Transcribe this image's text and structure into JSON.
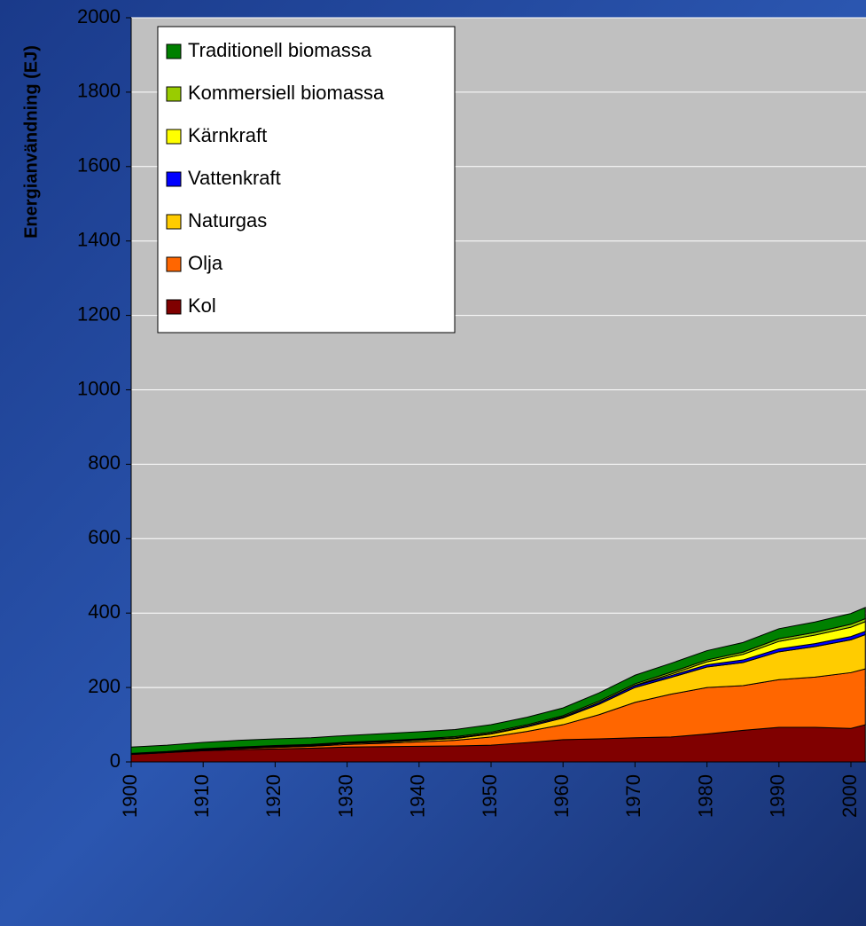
{
  "chart_data": {
    "type": "stacked_area",
    "ylabel": "Energianvändning (EJ)",
    "x": [
      1900,
      1905,
      1910,
      1915,
      1920,
      1925,
      1930,
      1935,
      1940,
      1945,
      1950,
      1955,
      1960,
      1965,
      1970,
      1975,
      1980,
      1985,
      1990,
      1995,
      2000,
      2002
    ],
    "series": [
      {
        "name": "Kol",
        "color": "#800000",
        "values": [
          20,
          25,
          30,
          33,
          35,
          37,
          40,
          41,
          42,
          43,
          45,
          52,
          60,
          62,
          65,
          67,
          75,
          85,
          93,
          93,
          90,
          100
        ]
      },
      {
        "name": "Olja",
        "color": "#ff6600",
        "values": [
          1,
          1,
          2,
          3,
          4,
          5,
          7,
          9,
          12,
          15,
          22,
          30,
          40,
          65,
          95,
          115,
          125,
          120,
          128,
          135,
          150,
          150
        ]
      },
      {
        "name": "Naturgas",
        "color": "#ffcc00",
        "values": [
          0,
          0,
          1,
          1,
          2,
          2,
          3,
          3,
          4,
          5,
          8,
          12,
          18,
          28,
          40,
          45,
          55,
          62,
          75,
          82,
          88,
          92
        ]
      },
      {
        "name": "Vattenkraft",
        "color": "#0000ff",
        "values": [
          0,
          0,
          0.5,
          1,
          1,
          1,
          1,
          2,
          2,
          2,
          2,
          3,
          3,
          4,
          5,
          5,
          6,
          7,
          8,
          8,
          9,
          9
        ]
      },
      {
        "name": "Kärnkraft",
        "color": "#ffff00",
        "values": [
          0,
          0,
          0,
          0,
          0,
          0,
          0,
          0,
          0,
          0,
          0,
          0,
          0.2,
          0.5,
          1,
          4,
          8,
          15,
          20,
          23,
          25,
          26
        ]
      },
      {
        "name": "Kommersiell biomassa",
        "color": "#99cc00",
        "values": [
          2,
          2,
          2,
          2,
          2,
          2,
          2,
          2,
          2,
          3,
          3,
          3,
          3,
          4,
          4,
          5,
          5,
          6,
          7,
          7,
          8,
          8
        ]
      },
      {
        "name": "Traditionell biomassa",
        "color": "#008000",
        "values": [
          17,
          17,
          17,
          18,
          18,
          18,
          18,
          19,
          19,
          19,
          20,
          20,
          21,
          22,
          23,
          24,
          25,
          26,
          27,
          28,
          29,
          30
        ]
      }
    ],
    "xlim": [
      1900,
      2002
    ],
    "xticks": [
      1900,
      1910,
      1920,
      1930,
      1940,
      1950,
      1960,
      1970,
      1980,
      1990,
      2000
    ],
    "ylim": [
      0,
      2000
    ],
    "yticks": [
      0,
      200,
      400,
      600,
      800,
      1000,
      1200,
      1400,
      1600,
      1800,
      2000
    ],
    "grid": true,
    "legend": "upper left"
  }
}
